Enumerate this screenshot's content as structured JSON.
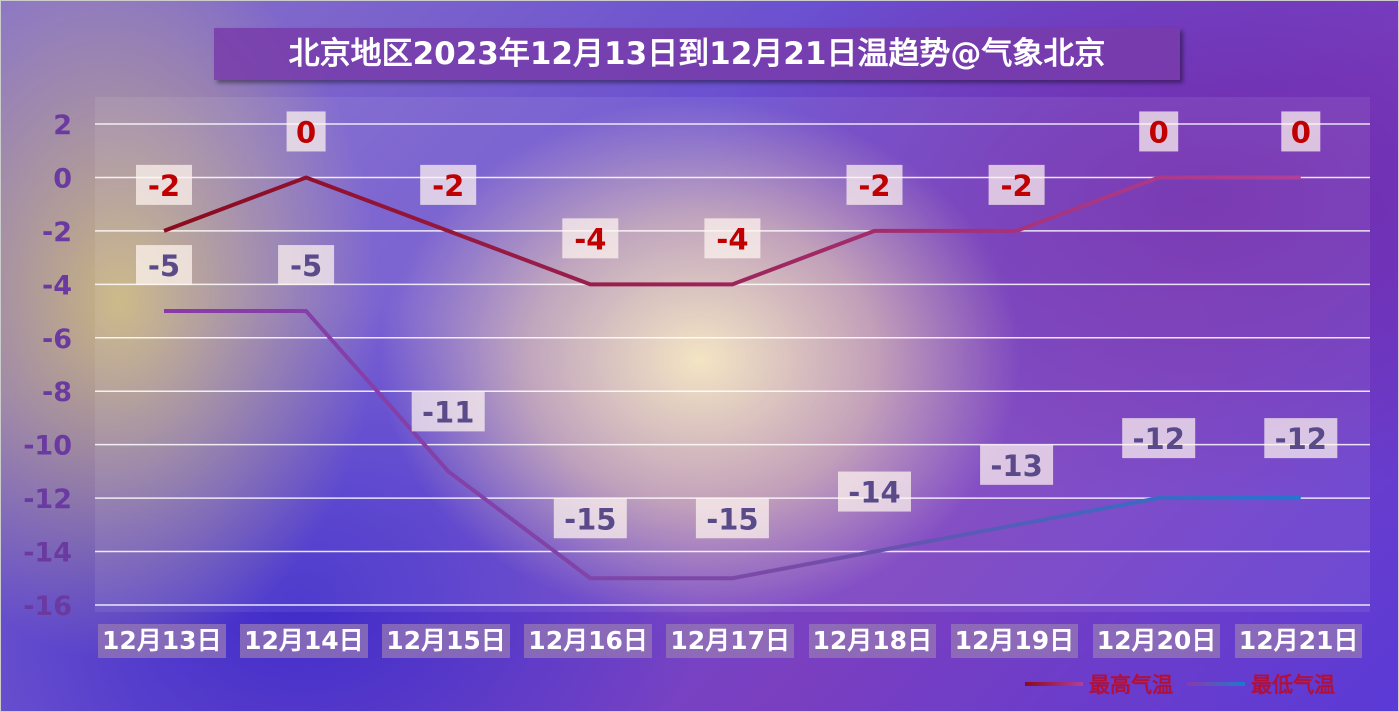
{
  "title": "北京地区2023年12月13日到12月21日温趋势@气象北京",
  "chart_data": {
    "type": "line",
    "title": "北京地区2023年12月13日到12月21日温趋势@气象北京",
    "categories": [
      "12月13日",
      "12月14日",
      "12月15日",
      "12月16日",
      "12月17日",
      "12月18日",
      "12月19日",
      "12月20日",
      "12月21日"
    ],
    "series": [
      {
        "name": "最高气温",
        "values": [
          -2,
          0,
          -2,
          -4,
          -4,
          -2,
          -2,
          0,
          0
        ],
        "color_start": "#8b0a1e",
        "color_end": "#b0409a",
        "label_color": "#c00000"
      },
      {
        "name": "最低气温",
        "values": [
          -5,
          -5,
          -11,
          -15,
          -15,
          -14,
          -13,
          -12,
          -12
        ],
        "color_start": "#8a3aa8",
        "color_end": "#1f78d0",
        "label_color": "#5a4a8a"
      }
    ],
    "ylim": [
      -16,
      2
    ],
    "yticks": [
      2,
      0,
      -2,
      -4,
      -6,
      -8,
      -10,
      -12,
      -14,
      -16
    ],
    "grid": true,
    "legend": "bottom-right"
  }
}
